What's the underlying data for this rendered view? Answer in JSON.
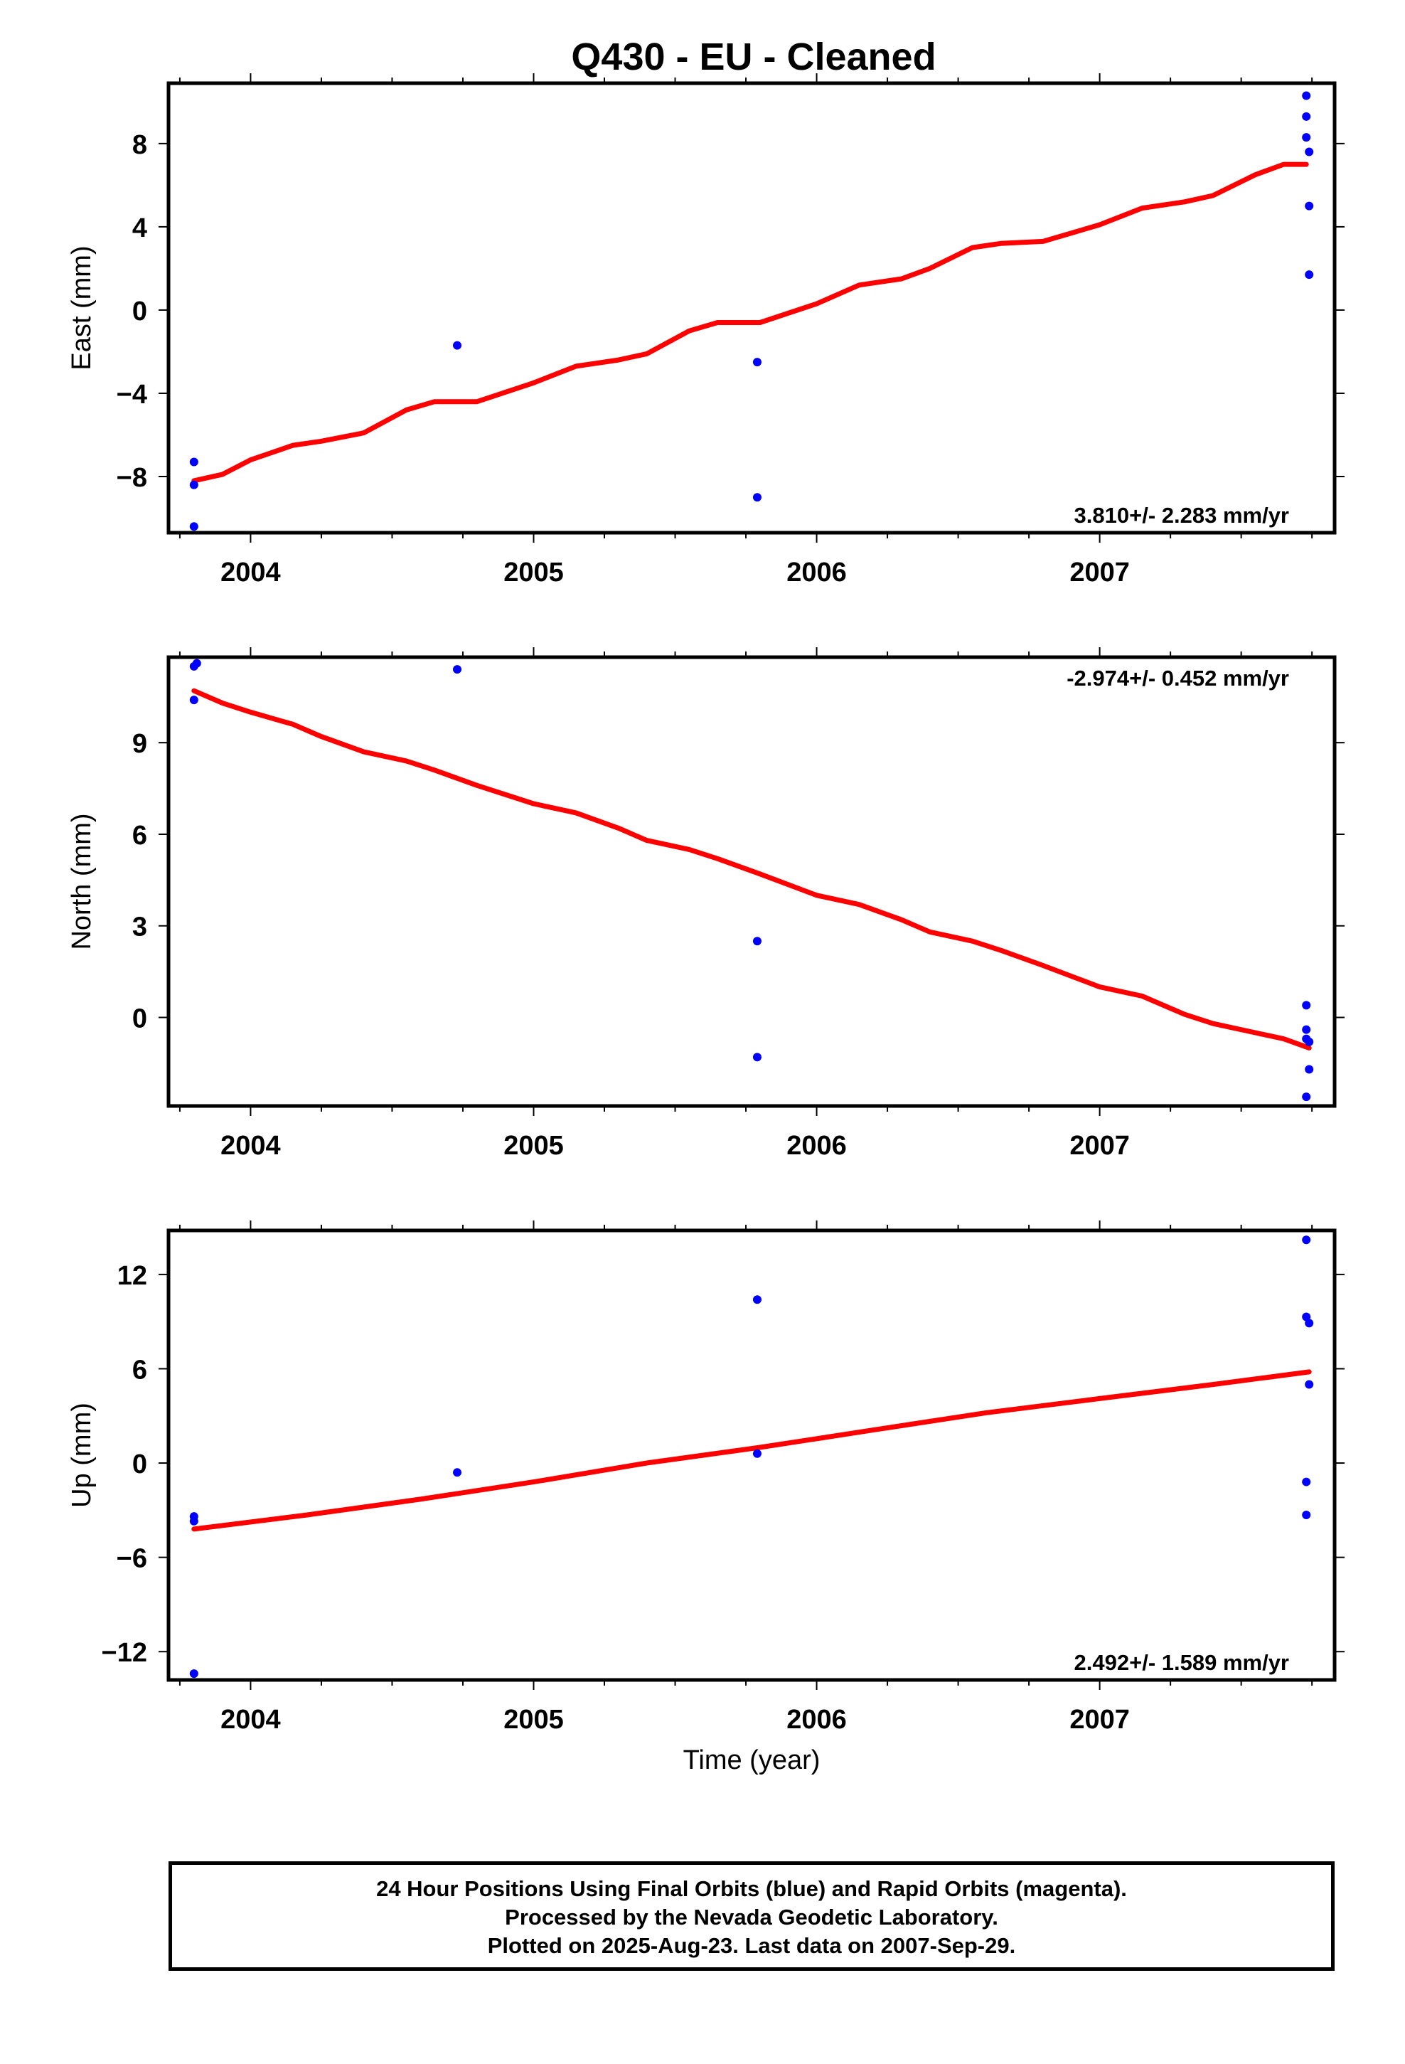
{
  "title": "Q430  - EU - Cleaned",
  "colors": {
    "data_points": "#0000ff",
    "fit_line": "#ff0000",
    "axis": "#000000",
    "background": "#ffffff"
  },
  "chart_data": [
    {
      "type": "scatter",
      "title": "Q430  - EU - Cleaned",
      "xlabel": "",
      "ylabel": "East (mm)",
      "xlim": [
        2003.71,
        2007.83
      ],
      "ylim": [
        -10.7,
        10.9
      ],
      "xticks": [
        "2004",
        "2005",
        "2006",
        "2007"
      ],
      "yticks": [
        "-8",
        "-4",
        "0",
        "4",
        "8"
      ],
      "rate_annotation": "3.810+/- 2.283 mm/yr",
      "rate_position": "bottom-right",
      "grid": false,
      "series": [
        {
          "x": [
            2003.8,
            2003.8,
            2003.8,
            2004.73,
            2005.79,
            2005.79,
            2007.73,
            2007.73,
            2007.73,
            2007.74,
            2007.74,
            2007.74
          ],
          "y": [
            -7.3,
            -8.4,
            -10.4,
            -1.7,
            -2.5,
            -9.0,
            10.3,
            9.3,
            8.3,
            7.6,
            5.0,
            1.7
          ]
        },
        {
          "fit": true,
          "x": [
            2003.8,
            2003.9,
            2004.0,
            2004.15,
            2004.25,
            2004.4,
            2004.55,
            2004.65,
            2004.8,
            2005.0,
            2005.15,
            2005.3,
            2005.4,
            2005.55,
            2005.65,
            2005.8,
            2006.0,
            2006.15,
            2006.3,
            2006.4,
            2006.55,
            2006.65,
            2006.8,
            2007.0,
            2007.15,
            2007.3,
            2007.4,
            2007.55,
            2007.65,
            2007.73
          ],
          "y": [
            -8.2,
            -7.9,
            -7.2,
            -6.5,
            -6.3,
            -5.9,
            -4.8,
            -4.4,
            -4.4,
            -3.5,
            -2.7,
            -2.4,
            -2.1,
            -1.0,
            -0.6,
            -0.6,
            0.3,
            1.2,
            1.5,
            2.0,
            3.0,
            3.2,
            3.3,
            4.1,
            4.9,
            5.2,
            5.5,
            6.5,
            7.0,
            7.0
          ]
        }
      ]
    },
    {
      "type": "scatter",
      "xlabel": "",
      "ylabel": "North (mm)",
      "xlim": [
        2003.71,
        2007.83
      ],
      "ylim": [
        -2.9,
        11.8
      ],
      "xticks": [
        "2004",
        "2005",
        "2006",
        "2007"
      ],
      "yticks": [
        "0",
        "3",
        "6",
        "9"
      ],
      "rate_annotation": "-2.974+/- 0.452 mm/yr",
      "rate_position": "top-right",
      "grid": false,
      "series": [
        {
          "x": [
            2003.8,
            2003.81,
            2003.8,
            2004.73,
            2005.79,
            2005.79,
            2007.73,
            2007.73,
            2007.73,
            2007.74,
            2007.74,
            2007.73
          ],
          "y": [
            11.5,
            11.6,
            10.4,
            11.4,
            2.5,
            -1.3,
            0.4,
            -0.4,
            -0.7,
            -0.8,
            -1.7,
            -2.6
          ]
        },
        {
          "fit": true,
          "x": [
            2003.8,
            2003.9,
            2004.0,
            2004.15,
            2004.25,
            2004.4,
            2004.55,
            2004.65,
            2004.8,
            2005.0,
            2005.15,
            2005.3,
            2005.4,
            2005.55,
            2005.65,
            2005.8,
            2006.0,
            2006.15,
            2006.3,
            2006.4,
            2006.55,
            2006.65,
            2006.8,
            2007.0,
            2007.15,
            2007.3,
            2007.4,
            2007.55,
            2007.65,
            2007.74
          ],
          "y": [
            10.7,
            10.3,
            10.0,
            9.6,
            9.2,
            8.7,
            8.4,
            8.1,
            7.6,
            7.0,
            6.7,
            6.2,
            5.8,
            5.5,
            5.2,
            4.7,
            4.0,
            3.7,
            3.2,
            2.8,
            2.5,
            2.2,
            1.7,
            1.0,
            0.7,
            0.1,
            -0.2,
            -0.5,
            -0.7,
            -1.0
          ]
        }
      ]
    },
    {
      "type": "scatter",
      "xlabel": "Time (year)",
      "ylabel": "Up (mm)",
      "xlim": [
        2003.71,
        2007.83
      ],
      "ylim": [
        -13.8,
        14.8
      ],
      "xticks": [
        "2004",
        "2005",
        "2006",
        "2007"
      ],
      "yticks": [
        "-12",
        "-6",
        "0",
        "6",
        "12"
      ],
      "rate_annotation": "2.492+/- 1.589 mm/yr",
      "rate_position": "bottom-right",
      "grid": false,
      "series": [
        {
          "x": [
            2003.8,
            2003.8,
            2003.8,
            2004.73,
            2005.79,
            2005.79,
            2007.73,
            2007.73,
            2007.74,
            2007.74,
            2007.73,
            2007.73
          ],
          "y": [
            -3.4,
            -3.7,
            -13.4,
            -0.6,
            10.4,
            0.6,
            14.2,
            9.3,
            8.9,
            5.0,
            -1.2,
            -3.3
          ]
        },
        {
          "fit": true,
          "x": [
            2003.8,
            2004.2,
            2004.6,
            2005.0,
            2005.4,
            2005.8,
            2006.2,
            2006.6,
            2007.0,
            2007.4,
            2007.74
          ],
          "y": [
            -4.2,
            -3.3,
            -2.3,
            -1.2,
            0.0,
            1.0,
            2.1,
            3.2,
            4.1,
            5.0,
            5.8
          ]
        }
      ]
    }
  ],
  "footer": {
    "line1": "24 Hour Positions Using Final Orbits (blue) and Rapid Orbits (magenta).",
    "line2": "Processed by the Nevada Geodetic Laboratory.",
    "line3": "Plotted on 2025-Aug-23. Last data on 2007-Sep-29."
  }
}
